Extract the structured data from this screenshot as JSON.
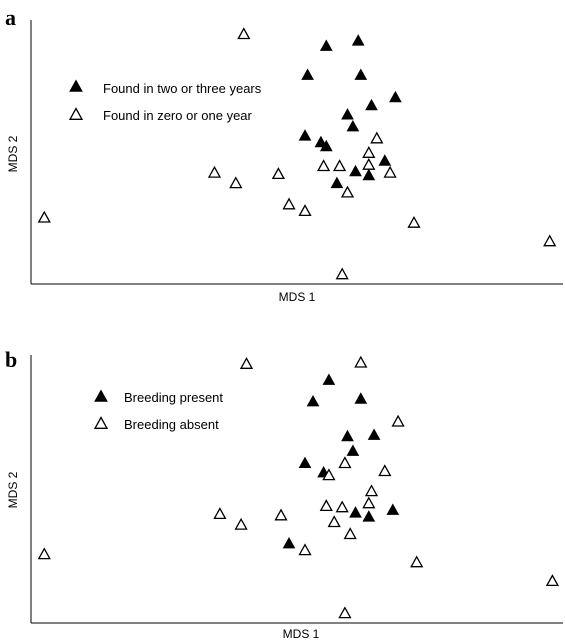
{
  "chart_data": [
    {
      "type": "scatter",
      "panel_label": "a",
      "xlabel": "MDS 1",
      "ylabel": "MDS 2",
      "xlim": [
        0,
        100
      ],
      "ylim": [
        0,
        100
      ],
      "grid": false,
      "legend_position": "top-left",
      "series": [
        {
          "name": "Found in two or three years",
          "marker": "filled-triangle",
          "color": "#000000",
          "points": [
            [
              55.5,
              90.0
            ],
            [
              61.5,
              92.0
            ],
            [
              52.0,
              79.0
            ],
            [
              62.0,
              79.0
            ],
            [
              68.5,
              70.5
            ],
            [
              64.0,
              67.5
            ],
            [
              59.5,
              64.0
            ],
            [
              60.5,
              59.5
            ],
            [
              51.5,
              56.0
            ],
            [
              54.5,
              53.5
            ],
            [
              55.5,
              52.0
            ],
            [
              66.5,
              46.5
            ],
            [
              61.0,
              42.5
            ],
            [
              63.5,
              41.0
            ],
            [
              57.5,
              38.0
            ]
          ]
        },
        {
          "name": "Found in zero or one year",
          "marker": "hollow-triangle",
          "color": "#000000",
          "points": [
            [
              40.0,
              94.5
            ],
            [
              65.0,
              55.0
            ],
            [
              63.5,
              49.5
            ],
            [
              55.0,
              44.5
            ],
            [
              58.0,
              44.5
            ],
            [
              63.5,
              45.0
            ],
            [
              67.5,
              42.0
            ],
            [
              34.5,
              42.0
            ],
            [
              38.5,
              38.0
            ],
            [
              46.5,
              41.5
            ],
            [
              59.5,
              34.5
            ],
            [
              48.5,
              30.0
            ],
            [
              51.5,
              27.5
            ],
            [
              2.5,
              25.0
            ],
            [
              72.0,
              23.0
            ],
            [
              97.5,
              16.0
            ],
            [
              58.5,
              3.5
            ]
          ]
        }
      ]
    },
    {
      "type": "scatter",
      "panel_label": "b",
      "xlabel": "MDS 1",
      "ylabel": "MDS 2",
      "xlim": [
        0,
        100
      ],
      "ylim": [
        0,
        100
      ],
      "grid": false,
      "legend_position": "top-left",
      "series": [
        {
          "name": "Breeding present",
          "marker": "filled-triangle",
          "color": "#000000",
          "points": [
            [
              56.0,
              90.5
            ],
            [
              53.0,
              82.5
            ],
            [
              62.0,
              83.5
            ],
            [
              64.5,
              70.0
            ],
            [
              59.5,
              69.5
            ],
            [
              60.5,
              64.0
            ],
            [
              51.5,
              59.5
            ],
            [
              55.0,
              56.0
            ],
            [
              61.0,
              41.0
            ],
            [
              63.5,
              39.5
            ],
            [
              68.0,
              42.0
            ],
            [
              48.5,
              29.5
            ]
          ]
        },
        {
          "name": "Breeding absent",
          "marker": "hollow-triangle",
          "color": "#000000",
          "points": [
            [
              40.5,
              96.5
            ],
            [
              62.0,
              97.0
            ],
            [
              69.0,
              75.0
            ],
            [
              56.0,
              55.0
            ],
            [
              59.0,
              59.5
            ],
            [
              64.0,
              49.0
            ],
            [
              66.5,
              56.5
            ],
            [
              63.5,
              44.5
            ],
            [
              55.5,
              43.5
            ],
            [
              58.5,
              43.0
            ],
            [
              57.0,
              37.5
            ],
            [
              60.0,
              33.0
            ],
            [
              35.5,
              40.5
            ],
            [
              39.5,
              36.5
            ],
            [
              47.0,
              40.0
            ],
            [
              51.5,
              27.0
            ],
            [
              2.5,
              25.5
            ],
            [
              72.5,
              22.5
            ],
            [
              98.0,
              15.5
            ],
            [
              59.0,
              3.5
            ]
          ]
        }
      ]
    }
  ]
}
